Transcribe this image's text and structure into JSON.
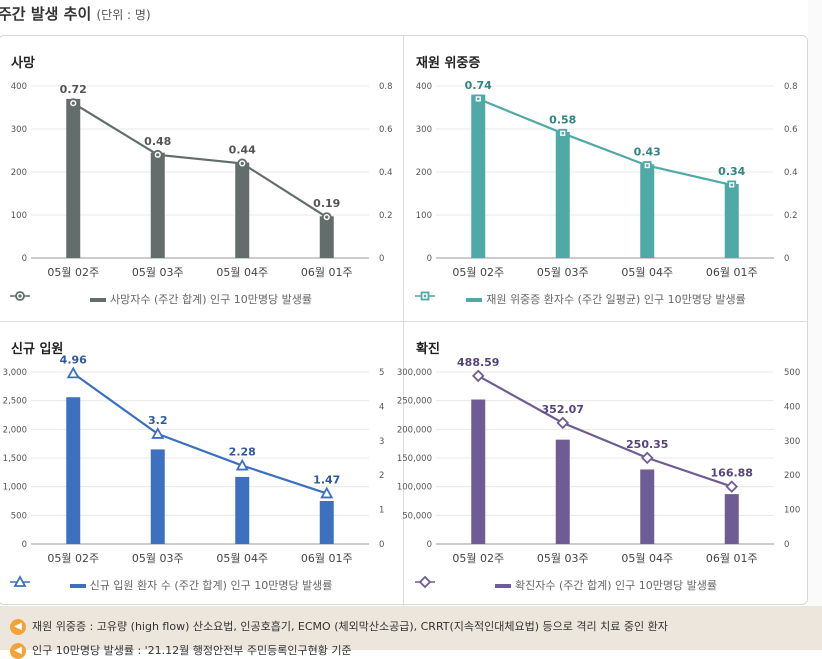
{
  "header": {
    "title": "주간 발생 추이",
    "unit": "(단위 : 명)"
  },
  "notes": [
    "재원 위중증 : 고유량 (high flow) 산소요법, 인공호흡기, ECMO (체외막산소공급), CRRT(지속적인대체요법) 등으로 격리 치료 중인 환자",
    "인구 10만명당 발생률 : '21.12월 행정안전부 주민등록인구현황 기준"
  ],
  "chart_data": [
    {
      "title": "사망",
      "type": "bar",
      "categories": [
        "05월 02주",
        "05월 03주",
        "05월 04주",
        "06월 01주"
      ],
      "series": [
        {
          "name": "사망자수 (주간 합계)",
          "values": [
            370,
            245,
            222,
            97
          ]
        },
        {
          "name": "인구 10만명당 발생률",
          "values": [
            0.72,
            0.48,
            0.44,
            0.19
          ],
          "type": "line",
          "axis": "right"
        }
      ],
      "rate_labels": [
        "0.72",
        "0.48",
        "0.44",
        "0.19"
      ],
      "y_ticks": [
        "0",
        "100",
        "200",
        "300",
        "400"
      ],
      "y2_ticks": [
        "0",
        "0.2",
        "0.4",
        "0.6",
        "0.8"
      ],
      "ylim": [
        0,
        400
      ],
      "y2lim": [
        0,
        0.8
      ],
      "colors": {
        "bar": "#626d6c",
        "line": "#626d6c",
        "label": "#555555"
      },
      "marker": "circle"
    },
    {
      "title": "재원 위중증",
      "type": "bar",
      "categories": [
        "05월 02주",
        "05월 03주",
        "05월 04주",
        "06월 01주"
      ],
      "series": [
        {
          "name": "재원 위중증 환자수 (주간 일평균)",
          "values": [
            380,
            293,
            218,
            172
          ]
        },
        {
          "name": "인구 10만명당 발생률",
          "values": [
            0.74,
            0.58,
            0.43,
            0.34
          ],
          "type": "line",
          "axis": "right"
        }
      ],
      "rate_labels": [
        "0.74",
        "0.58",
        "0.43",
        "0.34"
      ],
      "y_ticks": [
        "0",
        "100",
        "200",
        "300",
        "400"
      ],
      "y2_ticks": [
        "0",
        "0.2",
        "0.4",
        "0.6",
        "0.8"
      ],
      "ylim": [
        0,
        400
      ],
      "y2lim": [
        0,
        0.8
      ],
      "colors": {
        "bar": "#4fa9a6",
        "line": "#4fa9a6",
        "label": "#2f8683"
      },
      "marker": "square"
    },
    {
      "title": "신규 입원",
      "type": "bar",
      "categories": [
        "05월 02주",
        "05월 03주",
        "05월 04주",
        "06월 01주"
      ],
      "series": [
        {
          "name": "신규 입원 환자 수 (주간 합계)",
          "values": [
            2560,
            1650,
            1170,
            750
          ]
        },
        {
          "name": "인구 10만명당 발생률",
          "values": [
            4.96,
            3.2,
            2.28,
            1.47
          ],
          "type": "line",
          "axis": "right"
        }
      ],
      "rate_labels": [
        "4.96",
        "3.2",
        "2.28",
        "1.47"
      ],
      "y_ticks": [
        "0",
        "500",
        "1,000",
        "1,500",
        "2,000",
        "2,500",
        "3,000"
      ],
      "y2_ticks": [
        "0",
        "1",
        "2",
        "3",
        "4",
        "5"
      ],
      "ylim": [
        0,
        3000
      ],
      "y2lim": [
        0,
        5
      ],
      "colors": {
        "bar": "#3d71c0",
        "line": "#3d71c0",
        "label": "#2d5aa0"
      },
      "marker": "triangle"
    },
    {
      "title": "확진",
      "type": "bar",
      "categories": [
        "05월 02주",
        "05월 03주",
        "05월 04주",
        "06월 01주"
      ],
      "series": [
        {
          "name": "확진자수 (주간 합계)",
          "values": [
            252000,
            182000,
            130000,
            87000
          ]
        },
        {
          "name": "인구 10만명당 발생률",
          "values": [
            488.59,
            352.07,
            250.35,
            166.88
          ],
          "type": "line",
          "axis": "right"
        }
      ],
      "rate_labels": [
        "488.59",
        "352.07",
        "250.35",
        "166.88"
      ],
      "y_ticks": [
        "0",
        "50,000",
        "100,000",
        "150,000",
        "200,000",
        "250,000",
        "300,000"
      ],
      "y2_ticks": [
        "0",
        "100",
        "200",
        "300",
        "400",
        "500"
      ],
      "ylim": [
        0,
        300000
      ],
      "y2lim": [
        0,
        500
      ],
      "colors": {
        "bar": "#6e5c94",
        "line": "#6e5c94",
        "label": "#55457a"
      },
      "marker": "diamond"
    }
  ]
}
